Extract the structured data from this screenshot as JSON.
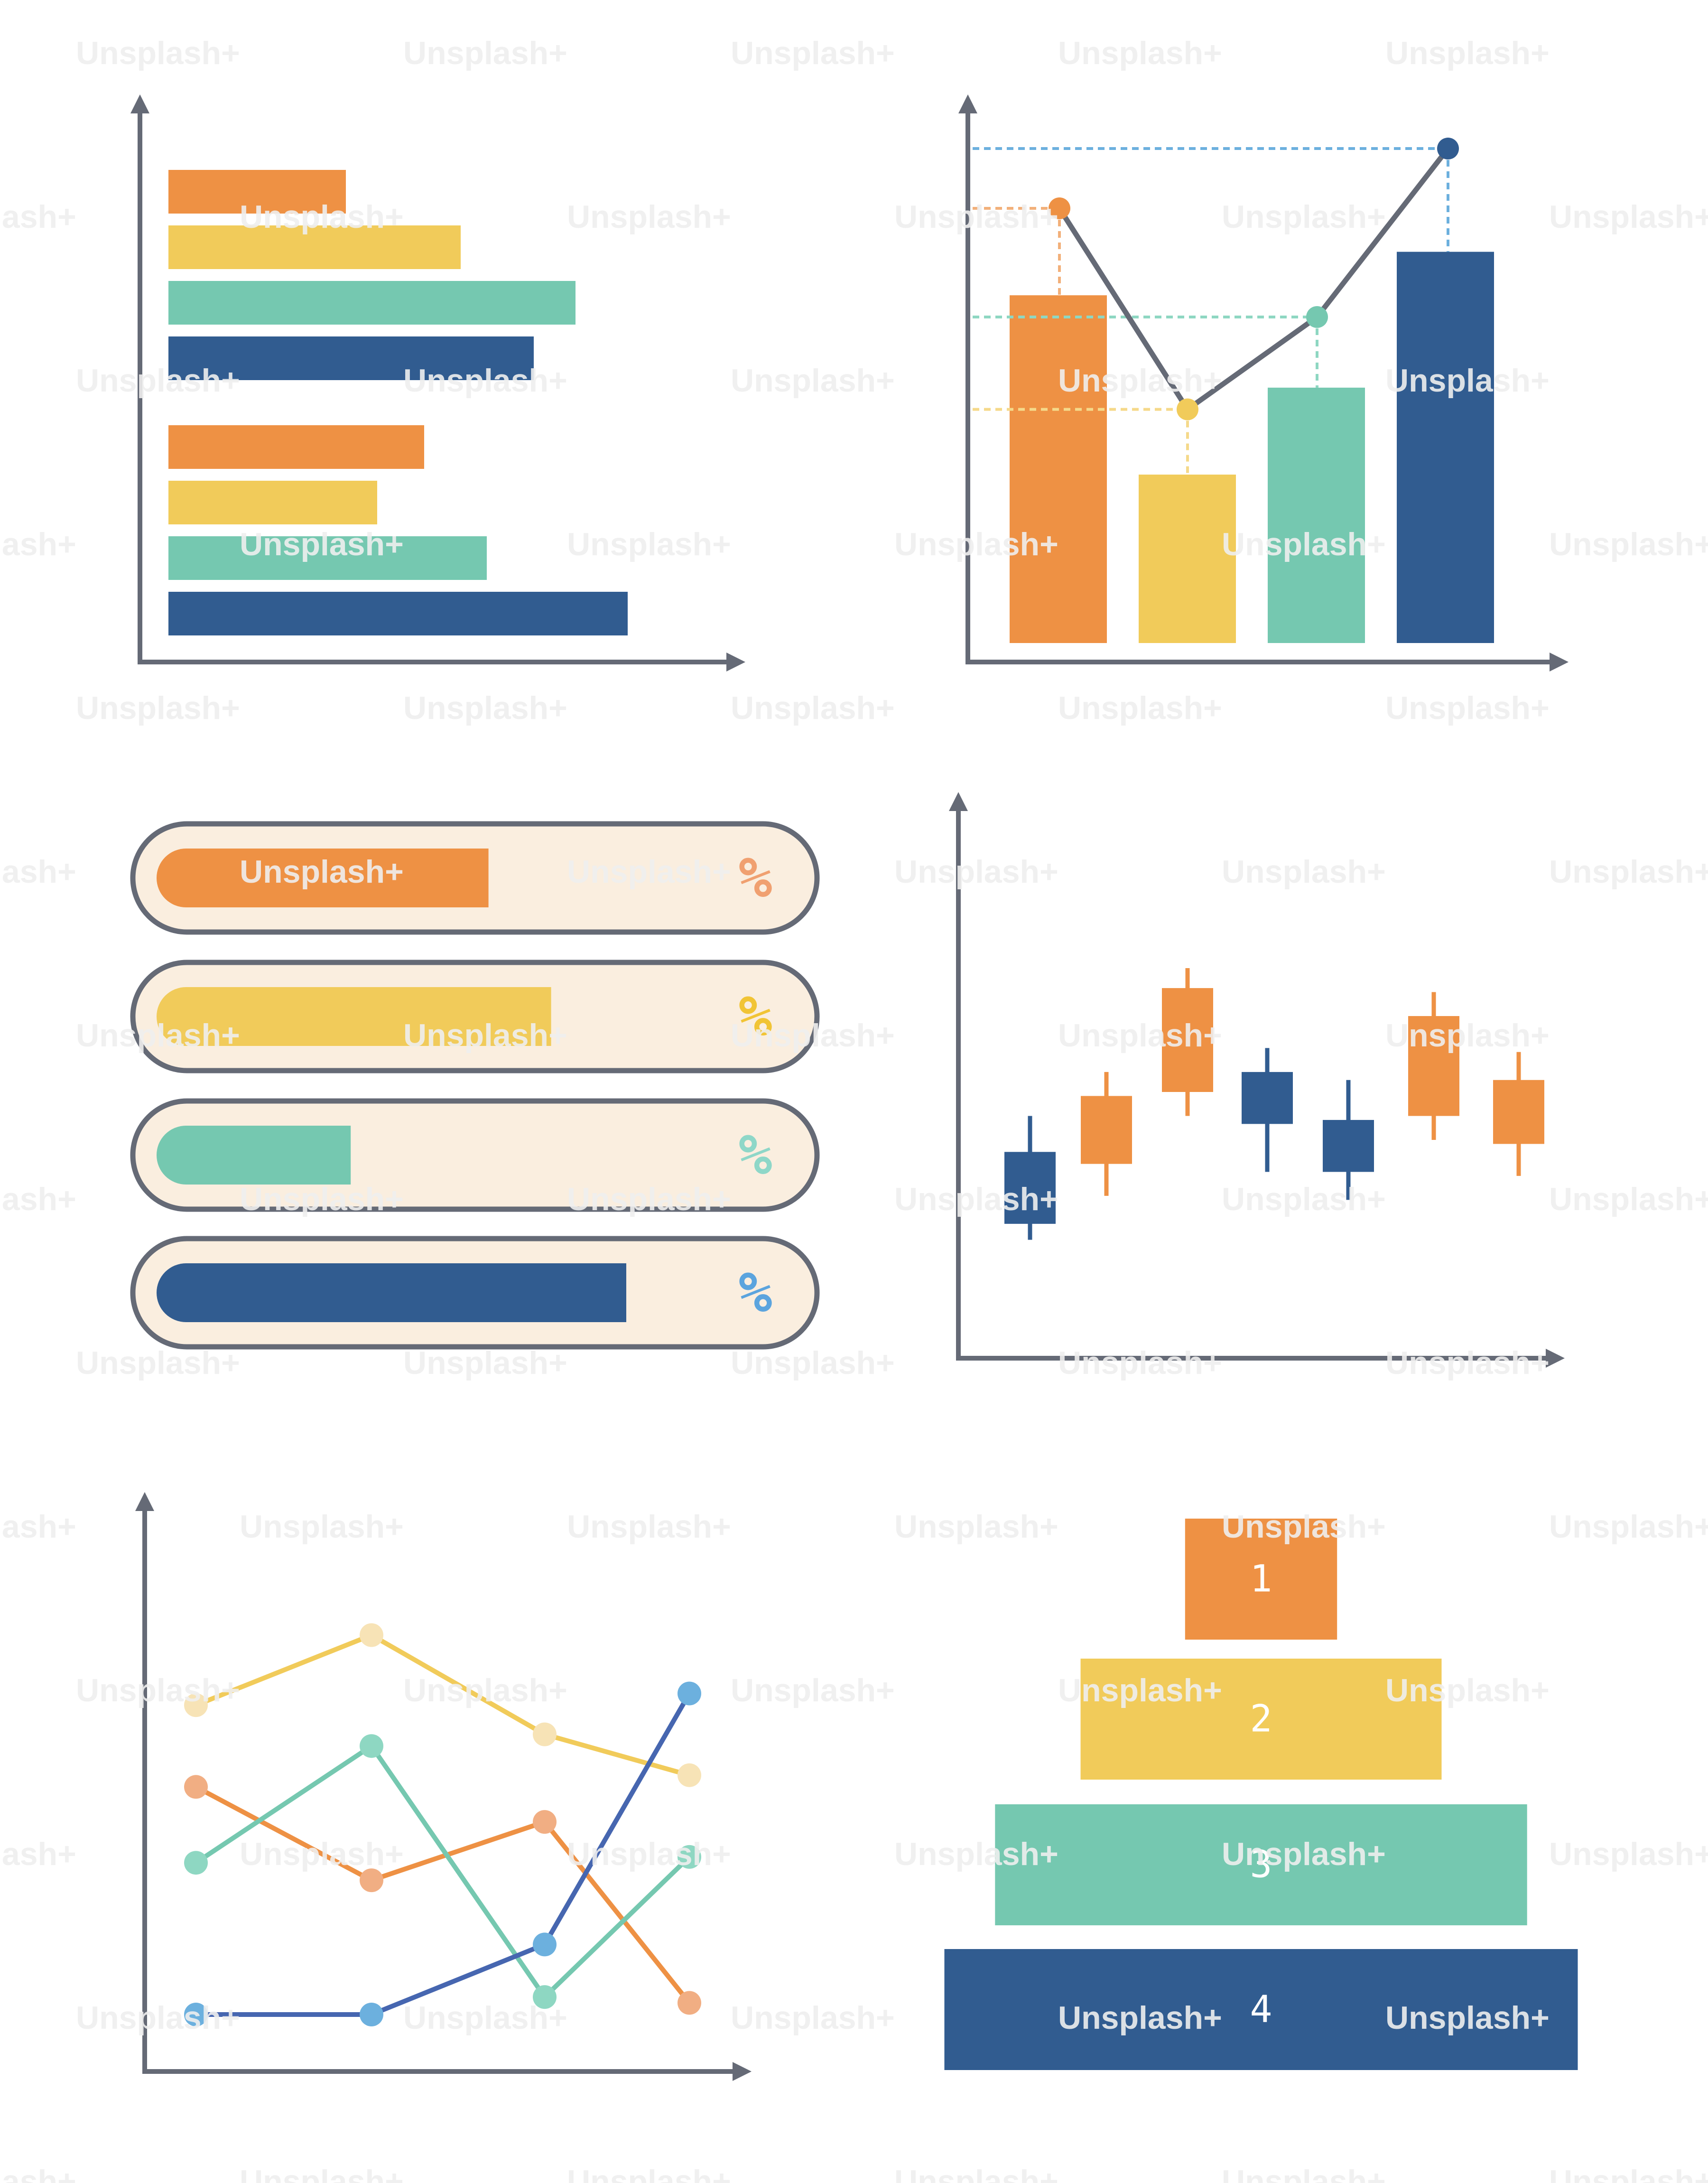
{
  "palette": {
    "orange": "#EE9144",
    "yellow": "#F1CB5A",
    "teal": "#75C8B0",
    "navy": "#315C90",
    "axis": "#656A76",
    "pill_bg": "#FAEEDF",
    "pill_border": "#656A76",
    "guide_orange": "#F2B07A",
    "guide_yellow": "#F5D98A",
    "guide_teal": "#8ED7C2",
    "guide_blue": "#6CB0DE",
    "pct_orange": "#F0A070",
    "pct_yellow": "#F1C435",
    "pct_teal": "#8ED7C8",
    "pct_blue": "#5BA4DE",
    "line_yellow": "#F1CB5A",
    "line_orange": "#EE9144",
    "line_teal": "#75C8B0",
    "line_navy": "#4666B0",
    "dot_yellow": "#F7E3B6",
    "dot_orange": "#F1AE83",
    "dot_teal": "#8ED7C2",
    "dot_blue": "#6CB0DE"
  },
  "watermark": {
    "text": "Unsplash+",
    "color": "#EEEEEE"
  },
  "chart_data": [
    {
      "type": "bar",
      "orientation": "horizontal",
      "xlim": [
        0,
        100
      ],
      "groups": [
        {
          "values": [
            {
              "value": 34,
              "color": "orange"
            },
            {
              "value": 56,
              "color": "yellow"
            },
            {
              "value": 78,
              "color": "teal"
            },
            {
              "value": 70,
              "color": "navy"
            }
          ]
        },
        {
          "values": [
            {
              "value": 49,
              "color": "orange"
            },
            {
              "value": 40,
              "color": "yellow"
            },
            {
              "value": 61,
              "color": "teal"
            },
            {
              "value": 88,
              "color": "navy"
            }
          ]
        }
      ]
    },
    {
      "type": "bar",
      "ylim": [
        0,
        100
      ],
      "values": [
        {
          "value": 64,
          "color": "orange"
        },
        {
          "value": 31,
          "color": "yellow"
        },
        {
          "value": 47,
          "color": "teal"
        },
        {
          "value": 72,
          "color": "navy"
        }
      ],
      "line": [
        {
          "value": 80,
          "dot": "orange",
          "guide": "guide_orange"
        },
        {
          "value": 43,
          "dot": "yellow",
          "guide": "guide_yellow"
        },
        {
          "value": 60,
          "dot": "teal",
          "guide": "guide_teal"
        },
        {
          "value": 91,
          "dot": "navy",
          "guide": "guide_blue"
        }
      ]
    },
    {
      "type": "progress",
      "items": [
        {
          "fraction": 0.53,
          "color": "orange",
          "label": "%",
          "label_color": "pct_orange"
        },
        {
          "fraction": 0.63,
          "color": "yellow",
          "label": "%",
          "label_color": "pct_yellow"
        },
        {
          "fraction": 0.31,
          "color": "teal",
          "label": "%",
          "label_color": "pct_teal"
        },
        {
          "fraction": 0.75,
          "color": "navy",
          "label": "%",
          "label_color": "pct_blue"
        }
      ]
    },
    {
      "type": "candlestick",
      "ylim": [
        0,
        100
      ],
      "candles": [
        {
          "open": 17,
          "close": 35,
          "high": 44,
          "low": 13,
          "color": "navy"
        },
        {
          "open": 32,
          "close": 49,
          "high": 55,
          "low": 24,
          "color": "orange"
        },
        {
          "open": 50,
          "close": 76,
          "high": 81,
          "low": 44,
          "color": "orange"
        },
        {
          "open": 42,
          "close": 55,
          "high": 61,
          "low": 30,
          "color": "navy"
        },
        {
          "open": 30,
          "close": 43,
          "high": 53,
          "low": 23,
          "color": "navy"
        },
        {
          "open": 44,
          "close": 69,
          "high": 75,
          "low": 38,
          "color": "orange"
        },
        {
          "open": 37,
          "close": 53,
          "high": 60,
          "low": 29,
          "color": "orange"
        }
      ]
    },
    {
      "type": "line",
      "x": [
        0,
        1,
        2,
        3
      ],
      "ylim": [
        0,
        100
      ],
      "series": [
        {
          "values": [
            53,
            65,
            48,
            41
          ],
          "color": "line_yellow",
          "dot": "dot_yellow"
        },
        {
          "values": [
            39,
            23,
            33,
            2
          ],
          "color": "line_orange",
          "dot": "dot_orange"
        },
        {
          "values": [
            26,
            46,
            3,
            27
          ],
          "color": "line_teal",
          "dot": "dot_teal"
        },
        {
          "values": [
            0,
            0,
            12,
            55
          ],
          "color": "line_navy",
          "dot": "dot_blue"
        }
      ]
    },
    {
      "type": "pyramid",
      "levels": [
        {
          "label": "1",
          "color": "orange",
          "width_fraction": 0.24
        },
        {
          "label": "2",
          "color": "yellow",
          "width_fraction": 0.57
        },
        {
          "label": "3",
          "color": "teal",
          "width_fraction": 0.84
        },
        {
          "label": "4",
          "color": "navy",
          "width_fraction": 1.0
        }
      ]
    }
  ]
}
